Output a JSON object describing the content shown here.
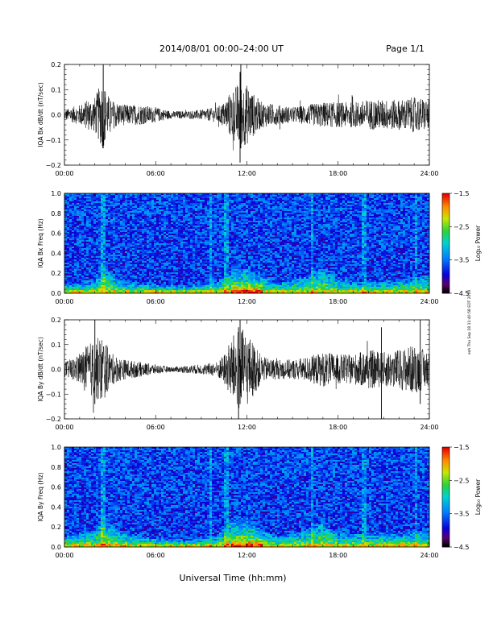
{
  "header": {
    "title": "2014/08/01  00:00–24:00 UT",
    "page_label": "Page 1/1"
  },
  "side_stamp": "eoh Thu Sep 18 11:40:58 EDT 2019",
  "xlabel": "Universal Time (hh:mm)",
  "chart_data": [
    {
      "type": "line",
      "ylabel": "IQA Bx dB/dt (nT/sec)",
      "x_ticks": [
        "00:00",
        "06:00",
        "12:00",
        "18:00",
        "24:00"
      ],
      "y_ticks": [
        "0.2",
        "0.1",
        "0.0",
        "−0.1",
        "−0.2"
      ],
      "xlim": [
        0,
        24
      ],
      "ylim": [
        -0.2,
        0.2
      ],
      "envelope": {
        "hours": [
          0,
          1,
          1.5,
          2,
          2.5,
          3,
          3.5,
          4,
          5,
          6,
          7,
          8,
          9,
          10,
          10.5,
          11,
          11.5,
          12,
          12.5,
          13,
          14,
          15,
          16,
          17,
          18,
          19,
          20,
          21,
          22,
          23,
          24
        ],
        "amplitude": [
          0.02,
          0.04,
          0.06,
          0.07,
          0.14,
          0.06,
          0.05,
          0.04,
          0.04,
          0.03,
          0.015,
          0.015,
          0.02,
          0.03,
          0.05,
          0.1,
          0.13,
          0.12,
          0.08,
          0.05,
          0.04,
          0.03,
          0.04,
          0.05,
          0.05,
          0.05,
          0.06,
          0.06,
          0.06,
          0.07,
          0.06
        ]
      },
      "peak_max": 0.2,
      "peak_min": -0.19
    },
    {
      "type": "heatmap",
      "ylabel": "IQA Bx Freq (Hz)",
      "x_ticks": [
        "00:00",
        "06:00",
        "12:00",
        "18:00",
        "24:00"
      ],
      "y_ticks": [
        "1.0",
        "0.8",
        "0.6",
        "0.4",
        "0.2",
        "0.0"
      ],
      "xlim": [
        0,
        24
      ],
      "ylim": [
        0,
        1.0
      ],
      "colorbar": {
        "label": "Log₁₀ Power",
        "ticks": [
          "−1.5",
          "−2.5",
          "−3.5",
          "−4.5"
        ],
        "range": [
          -4.5,
          -1.5
        ]
      },
      "low_freq_activity": {
        "hours": [
          0,
          2,
          2.5,
          4,
          6,
          8,
          10,
          11,
          12,
          13,
          14,
          16,
          17,
          18,
          20,
          22,
          24
        ],
        "extent_hz": [
          0.1,
          0.15,
          0.3,
          0.12,
          0.1,
          0.08,
          0.12,
          0.25,
          0.3,
          0.2,
          0.12,
          0.2,
          0.3,
          0.15,
          0.12,
          0.15,
          0.2
        ]
      }
    },
    {
      "type": "line",
      "ylabel": "IQA By dB/dt (nT/sec)",
      "x_ticks": [
        "00:00",
        "06:00",
        "12:00",
        "18:00",
        "24:00"
      ],
      "y_ticks": [
        "0.2",
        "0.1",
        "0.0",
        "−0.1",
        "−0.2"
      ],
      "xlim": [
        0,
        24
      ],
      "ylim": [
        -0.2,
        0.2
      ],
      "envelope": {
        "hours": [
          0,
          1,
          1.5,
          2,
          2.5,
          3,
          3.5,
          4,
          5,
          6,
          7,
          8,
          9,
          10,
          10.5,
          11,
          11.5,
          12,
          12.5,
          13,
          14,
          15,
          16,
          17,
          18,
          19,
          20,
          21,
          22,
          23,
          24
        ],
        "amplitude": [
          0.03,
          0.06,
          0.1,
          0.12,
          0.14,
          0.07,
          0.05,
          0.04,
          0.03,
          0.02,
          0.01,
          0.015,
          0.02,
          0.03,
          0.06,
          0.13,
          0.17,
          0.15,
          0.1,
          0.05,
          0.04,
          0.04,
          0.05,
          0.07,
          0.06,
          0.06,
          0.08,
          0.07,
          0.08,
          0.1,
          0.07
        ]
      },
      "peak_max": 0.2,
      "peak_min": -0.2
    },
    {
      "type": "heatmap",
      "ylabel": "IQA By Freq (Hz)",
      "x_ticks": [
        "00:00",
        "06:00",
        "12:00",
        "18:00",
        "24:00"
      ],
      "y_ticks": [
        "1.0",
        "0.8",
        "0.6",
        "0.4",
        "0.2",
        "0.0"
      ],
      "xlim": [
        0,
        24
      ],
      "ylim": [
        0,
        1.0
      ],
      "colorbar": {
        "label": "Log₁₀ Power",
        "ticks": [
          "−1.5",
          "−2.5",
          "−3.5",
          "−4.5"
        ],
        "range": [
          -4.5,
          -1.5
        ]
      },
      "low_freq_activity": {
        "hours": [
          0,
          2,
          2.5,
          4,
          6,
          8,
          10,
          11,
          12,
          13,
          14,
          16,
          17,
          18,
          20,
          22,
          24
        ],
        "extent_hz": [
          0.12,
          0.2,
          0.35,
          0.15,
          0.1,
          0.08,
          0.12,
          0.3,
          0.35,
          0.2,
          0.12,
          0.2,
          0.3,
          0.15,
          0.15,
          0.15,
          0.2
        ]
      }
    }
  ]
}
